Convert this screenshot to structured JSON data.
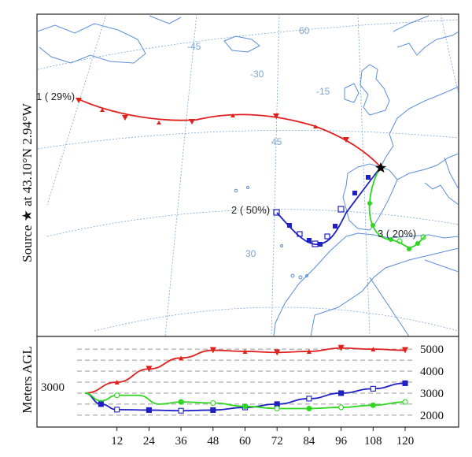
{
  "source_label": "Source ★ at 43.10°N 2.94°W",
  "height_axis_label": "Meters AGL",
  "start_height_label": "3000",
  "longitude_labels": [
    "-45",
    "-30",
    "-15",
    "60"
  ],
  "latitude_labels": [
    "45",
    "30"
  ],
  "trajectory_labels": [
    {
      "id": "1",
      "text": "1 ( 29%)"
    },
    {
      "id": "2",
      "text": "2 ( 50%)"
    },
    {
      "id": "3",
      "text": "3 ( 20%)"
    }
  ],
  "colors": {
    "traj1": "#e0211e",
    "traj2": "#1f1fc6",
    "traj3": "#2fd61f",
    "coast": "#5b8ed8",
    "graticule": "#7aa6d6",
    "source_marker": "#000000"
  },
  "chart_data": {
    "type": "line",
    "xlabel": "",
    "ylabel": "Meters AGL",
    "x": [
      12,
      24,
      36,
      48,
      60,
      72,
      84,
      96,
      108,
      120
    ],
    "x_tick_labels": [
      "12",
      "24",
      "36",
      "48",
      "60",
      "72",
      "84",
      "96",
      "108",
      "120"
    ],
    "y_tick_labels": [
      "2000",
      "3000",
      "4000",
      "5000"
    ],
    "y_ticks": [
      2000,
      3000,
      4000,
      5000
    ],
    "ylim": [
      1600,
      5400
    ],
    "grid": true,
    "series": [
      {
        "id": "1",
        "color": "#e0211e",
        "points": [
          [
            0,
            3000
          ],
          [
            12,
            3500
          ],
          [
            24,
            4100
          ],
          [
            36,
            4600
          ],
          [
            48,
            4950
          ],
          [
            60,
            4900
          ],
          [
            72,
            4850
          ],
          [
            84,
            4900
          ],
          [
            96,
            5050
          ],
          [
            108,
            5000
          ],
          [
            120,
            4950
          ]
        ]
      },
      {
        "id": "2",
        "color": "#1f1fc6",
        "points": [
          [
            0,
            3000
          ],
          [
            6,
            2500
          ],
          [
            12,
            2250
          ],
          [
            24,
            2230
          ],
          [
            36,
            2200
          ],
          [
            48,
            2230
          ],
          [
            60,
            2350
          ],
          [
            72,
            2500
          ],
          [
            84,
            2750
          ],
          [
            96,
            3000
          ],
          [
            108,
            3200
          ],
          [
            120,
            3450
          ]
        ]
      },
      {
        "id": "3",
        "color": "#2fd61f",
        "points": [
          [
            0,
            3000
          ],
          [
            6,
            2650
          ],
          [
            12,
            2900
          ],
          [
            20,
            2900
          ],
          [
            28,
            2500
          ],
          [
            36,
            2600
          ],
          [
            48,
            2550
          ],
          [
            60,
            2400
          ],
          [
            72,
            2300
          ],
          [
            84,
            2300
          ],
          [
            96,
            2350
          ],
          [
            108,
            2450
          ],
          [
            120,
            2600
          ]
        ]
      }
    ]
  }
}
